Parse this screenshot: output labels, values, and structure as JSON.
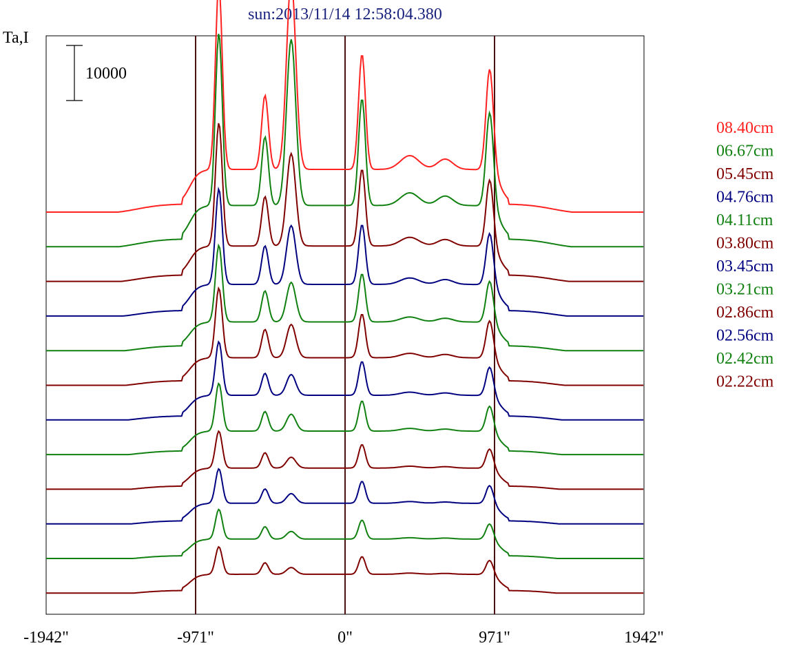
{
  "chart_data": {
    "type": "line",
    "title": "sun:2013/11/14 12:58:04.380",
    "ylabel": "Ta,I",
    "scale_bar_label": "10000",
    "x_tick_labels": [
      "-1942\"",
      "-971\"",
      "0\"",
      "971\"",
      "1942\""
    ],
    "x_ticks": [
      -1942,
      -971,
      0,
      971,
      1942
    ],
    "xlim": [
      -1942,
      1942
    ],
    "vertical_lines": [
      -971,
      0,
      971
    ],
    "series": [
      {
        "name": "08.40cm",
        "color": "#ff2020",
        "amplitude": 1.0
      },
      {
        "name": "06.67cm",
        "color": "#108010",
        "amplitude": 0.95
      },
      {
        "name": "05.45cm",
        "color": "#800000",
        "amplitude": 0.75
      },
      {
        "name": "04.76cm",
        "color": "#000080",
        "amplitude": 0.62
      },
      {
        "name": "04.11cm",
        "color": "#108010",
        "amplitude": 0.52
      },
      {
        "name": "03.80cm",
        "color": "#800000",
        "amplitude": 0.48
      },
      {
        "name": "03.45cm",
        "color": "#000080",
        "amplitude": 0.38
      },
      {
        "name": "03.21cm",
        "color": "#108010",
        "amplitude": 0.34
      },
      {
        "name": "02.86cm",
        "color": "#800000",
        "amplitude": 0.26
      },
      {
        "name": "02.56cm",
        "color": "#000080",
        "amplitude": 0.24
      },
      {
        "name": "02.42cm",
        "color": "#108010",
        "amplitude": 0.2
      },
      {
        "name": "02.22cm",
        "color": "#800000",
        "amplitude": 0.18
      }
    ],
    "legend_placement": "right",
    "grid": false
  }
}
